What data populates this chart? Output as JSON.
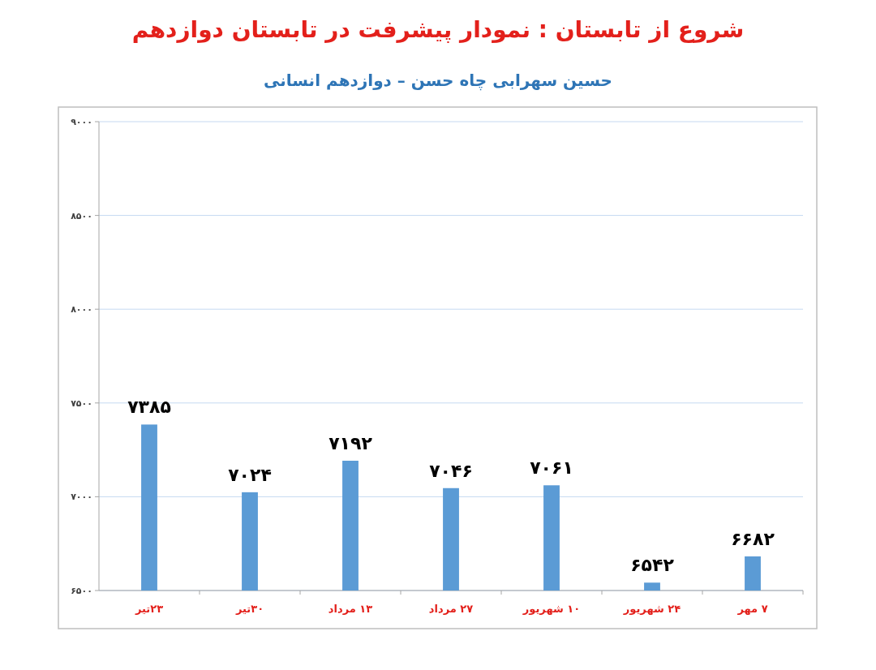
{
  "chart_data": {
    "type": "bar",
    "title": "شروع از تابستان : نمودار پیشرفت در تابستان دوازدهم",
    "subtitle": "حسین سهرابی چاه حسن – دوازدهم انسانی",
    "categories": [
      "۲۳تیر",
      "۳۰تیر",
      "۱۳ مرداد",
      "۲۷ مرداد",
      "۱۰ شهریور",
      "۲۴ شهریور",
      "۷ مهر"
    ],
    "values": [
      7385,
      7024,
      7192,
      7046,
      7061,
      6542,
      6682
    ],
    "value_labels": [
      "۷۳۸۵",
      "۷۰۲۴",
      "۷۱۹۲",
      "۷۰۴۶",
      "۷۰۶۱",
      "۶۵۴۲",
      "۶۶۸۲"
    ],
    "color": "#5b9bd5",
    "ylim": [
      6500,
      9000
    ],
    "yticks": [
      {
        "value": 6500,
        "label": "۶۵۰۰"
      },
      {
        "value": 7000,
        "label": "۷۰۰۰"
      },
      {
        "value": 7500,
        "label": "۷۵۰۰"
      },
      {
        "value": 8000,
        "label": "۸۰۰۰"
      },
      {
        "value": 8500,
        "label": "۸۵۰۰"
      },
      {
        "value": 9000,
        "label": "۹۰۰۰"
      }
    ],
    "grid": "y"
  }
}
